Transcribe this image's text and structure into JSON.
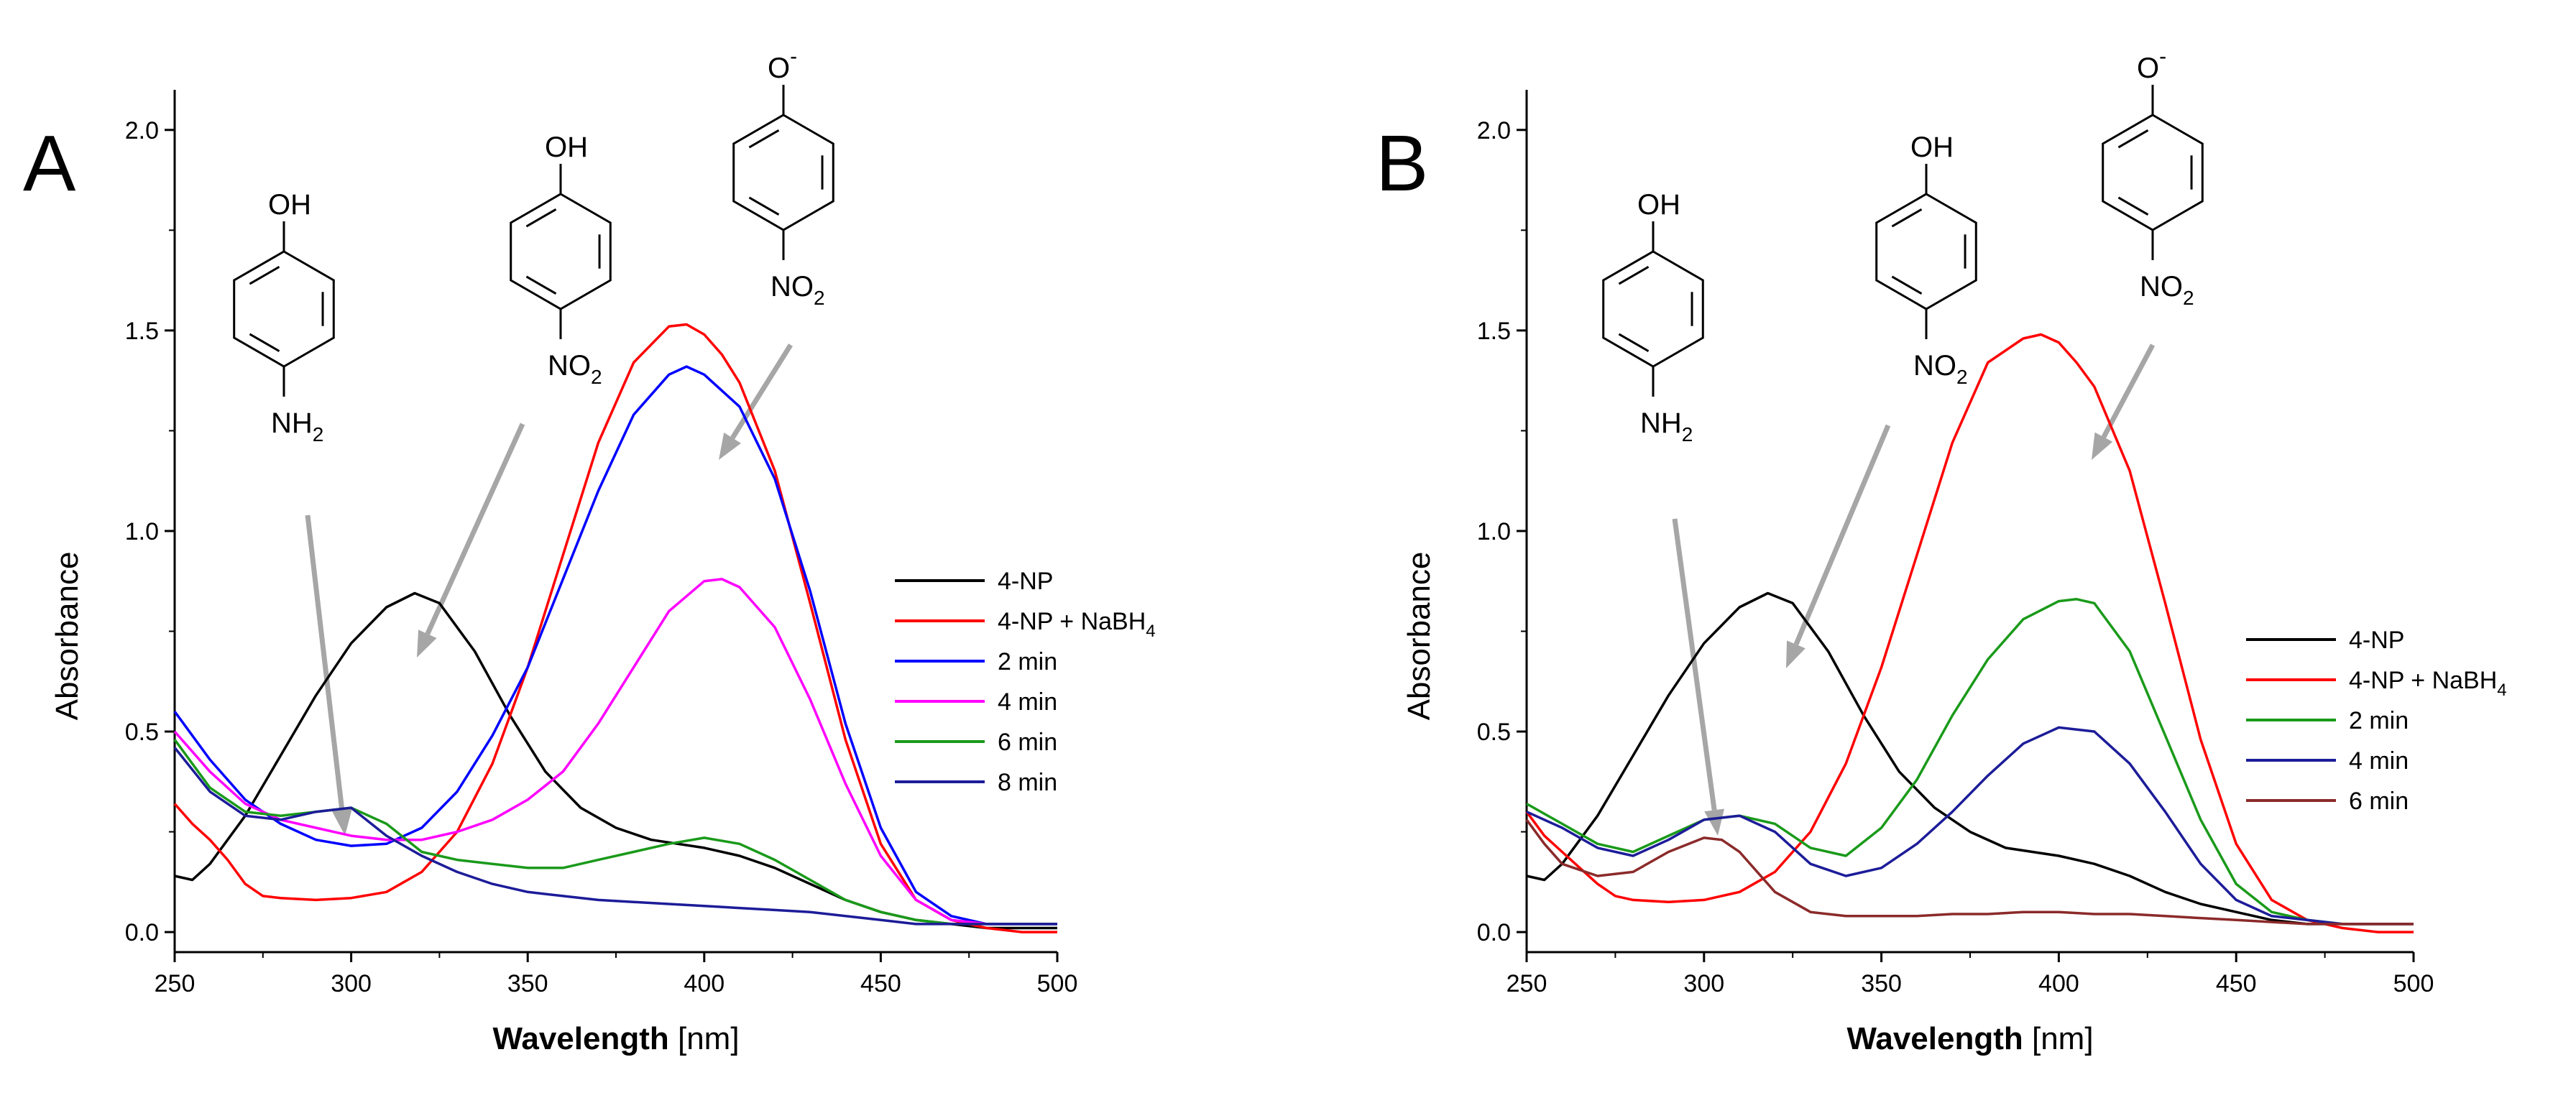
{
  "chart_data": [
    {
      "panel": "A",
      "type": "line",
      "xlabel_bold": "Wavelength",
      "xlabel_unit": "[nm]",
      "ylabel": "Absorbance",
      "xlim": [
        250,
        500
      ],
      "ylim": [
        -0.05,
        2.1
      ],
      "xticks": [
        250,
        300,
        350,
        400,
        450,
        500
      ],
      "yticks": [
        0.0,
        0.5,
        1.0,
        1.5,
        2.0
      ],
      "ytick_labels": [
        "0.0",
        "0.5",
        "1.0",
        "1.5",
        "2.0"
      ],
      "structures": [
        {
          "id": "aminophenol",
          "top": "OH",
          "bottom": "NH",
          "bottom_sub": "2"
        },
        {
          "id": "nitrophenol",
          "top": "OH",
          "bottom": "NO",
          "bottom_sub": "2"
        },
        {
          "id": "nitrophenolate",
          "top": "O",
          "top_sup": "-",
          "bottom": "NO",
          "bottom_sub": "2"
        }
      ],
      "series": [
        {
          "name": "4-NP",
          "color": "#000000",
          "x": [
            250,
            255,
            260,
            270,
            280,
            290,
            300,
            310,
            318,
            325,
            335,
            345,
            355,
            365,
            375,
            385,
            400,
            410,
            420,
            430,
            440,
            450,
            460,
            470,
            480,
            490,
            500
          ],
          "y": [
            0.14,
            0.13,
            0.17,
            0.29,
            0.44,
            0.59,
            0.72,
            0.81,
            0.845,
            0.82,
            0.7,
            0.54,
            0.4,
            0.31,
            0.26,
            0.23,
            0.21,
            0.19,
            0.16,
            0.12,
            0.08,
            0.05,
            0.03,
            0.02,
            0.01,
            0.01,
            0.01
          ]
        },
        {
          "name": "4-NP + NaBH₄",
          "label_main": "4-NP + NaBH",
          "label_sub": "4",
          "color": "#ff0000",
          "x": [
            250,
            255,
            260,
            265,
            270,
            275,
            280,
            290,
            300,
            310,
            320,
            330,
            340,
            350,
            360,
            370,
            380,
            390,
            395,
            400,
            405,
            410,
            420,
            430,
            440,
            450,
            460,
            470,
            480,
            490,
            500
          ],
          "y": [
            0.32,
            0.27,
            0.23,
            0.18,
            0.12,
            0.09,
            0.085,
            0.08,
            0.085,
            0.1,
            0.15,
            0.25,
            0.42,
            0.66,
            0.94,
            1.22,
            1.42,
            1.51,
            1.515,
            1.49,
            1.44,
            1.37,
            1.15,
            0.82,
            0.48,
            0.22,
            0.08,
            0.03,
            0.01,
            0.0,
            0.0
          ]
        },
        {
          "name": "2 min",
          "color": "#0000ff",
          "x": [
            250,
            260,
            270,
            280,
            290,
            300,
            310,
            320,
            330,
            340,
            350,
            360,
            370,
            380,
            390,
            395,
            400,
            410,
            420,
            430,
            440,
            450,
            460,
            470,
            480,
            490,
            500
          ],
          "y": [
            0.55,
            0.43,
            0.33,
            0.27,
            0.23,
            0.215,
            0.22,
            0.26,
            0.35,
            0.49,
            0.66,
            0.88,
            1.1,
            1.29,
            1.39,
            1.41,
            1.39,
            1.31,
            1.13,
            0.85,
            0.52,
            0.26,
            0.1,
            0.04,
            0.02,
            0.02,
            0.02
          ]
        },
        {
          "name": "4 min",
          "color": "#ff00ff",
          "x": [
            250,
            260,
            270,
            280,
            290,
            300,
            310,
            320,
            330,
            340,
            350,
            360,
            370,
            380,
            390,
            400,
            405,
            410,
            420,
            430,
            440,
            450,
            460,
            470,
            480,
            490,
            500
          ],
          "y": [
            0.5,
            0.4,
            0.32,
            0.28,
            0.26,
            0.24,
            0.23,
            0.23,
            0.25,
            0.28,
            0.33,
            0.4,
            0.52,
            0.66,
            0.8,
            0.875,
            0.88,
            0.86,
            0.76,
            0.58,
            0.37,
            0.19,
            0.08,
            0.03,
            0.02,
            0.02,
            0.02
          ]
        },
        {
          "name": "6 min",
          "color": "#1a9a1a",
          "x": [
            250,
            260,
            270,
            280,
            290,
            300,
            310,
            320,
            330,
            340,
            350,
            360,
            370,
            380,
            390,
            400,
            410,
            420,
            430,
            440,
            450,
            460,
            470,
            480,
            490,
            500
          ],
          "y": [
            0.48,
            0.36,
            0.3,
            0.29,
            0.3,
            0.31,
            0.27,
            0.2,
            0.18,
            0.17,
            0.16,
            0.16,
            0.18,
            0.2,
            0.22,
            0.235,
            0.22,
            0.18,
            0.13,
            0.08,
            0.05,
            0.03,
            0.02,
            0.02,
            0.02,
            0.02
          ]
        },
        {
          "name": "8 min",
          "color": "#1c1c99",
          "x": [
            250,
            260,
            270,
            280,
            290,
            300,
            310,
            320,
            330,
            340,
            350,
            360,
            370,
            380,
            390,
            400,
            410,
            420,
            430,
            440,
            450,
            460,
            470,
            480,
            490,
            500
          ],
          "y": [
            0.46,
            0.35,
            0.29,
            0.28,
            0.3,
            0.31,
            0.24,
            0.19,
            0.15,
            0.12,
            0.1,
            0.09,
            0.08,
            0.075,
            0.07,
            0.065,
            0.06,
            0.055,
            0.05,
            0.04,
            0.03,
            0.02,
            0.02,
            0.02,
            0.02,
            0.02
          ]
        }
      ]
    },
    {
      "panel": "B",
      "type": "line",
      "xlabel_bold": "Wavelength",
      "xlabel_unit": "[nm]",
      "ylabel": "Absorbance",
      "xlim": [
        250,
        500
      ],
      "ylim": [
        -0.05,
        2.1
      ],
      "xticks": [
        250,
        300,
        350,
        400,
        450,
        500
      ],
      "yticks": [
        0.0,
        0.5,
        1.0,
        1.5,
        2.0
      ],
      "ytick_labels": [
        "0.0",
        "0.5",
        "1.0",
        "1.5",
        "2.0"
      ],
      "structures": [
        {
          "id": "aminophenol",
          "top": "OH",
          "bottom": "NH",
          "bottom_sub": "2"
        },
        {
          "id": "nitrophenol",
          "top": "OH",
          "bottom": "NO",
          "bottom_sub": "2"
        },
        {
          "id": "nitrophenolate",
          "top": "O",
          "top_sup": "-",
          "bottom": "NO",
          "bottom_sub": "2"
        }
      ],
      "series": [
        {
          "name": "4-NP",
          "color": "#000000",
          "x": [
            250,
            255,
            260,
            270,
            280,
            290,
            300,
            310,
            318,
            325,
            335,
            345,
            355,
            365,
            375,
            385,
            400,
            410,
            420,
            430,
            440,
            450,
            460,
            470,
            480,
            490,
            500
          ],
          "y": [
            0.14,
            0.13,
            0.17,
            0.29,
            0.44,
            0.59,
            0.72,
            0.81,
            0.845,
            0.82,
            0.7,
            0.54,
            0.4,
            0.31,
            0.25,
            0.21,
            0.19,
            0.17,
            0.14,
            0.1,
            0.07,
            0.05,
            0.03,
            0.02,
            0.02,
            0.02,
            0.02
          ]
        },
        {
          "name": "4-NP + NaBH₄",
          "label_main": "4-NP + NaBH",
          "label_sub": "4",
          "color": "#ff0000",
          "x": [
            250,
            255,
            260,
            265,
            270,
            275,
            280,
            290,
            300,
            310,
            320,
            330,
            340,
            350,
            360,
            370,
            380,
            390,
            395,
            400,
            405,
            410,
            420,
            430,
            440,
            450,
            460,
            470,
            480,
            490,
            500
          ],
          "y": [
            0.3,
            0.24,
            0.2,
            0.16,
            0.12,
            0.09,
            0.08,
            0.075,
            0.08,
            0.1,
            0.15,
            0.25,
            0.42,
            0.66,
            0.94,
            1.22,
            1.42,
            1.48,
            1.49,
            1.47,
            1.42,
            1.36,
            1.15,
            0.82,
            0.48,
            0.22,
            0.08,
            0.03,
            0.01,
            0.0,
            0.0
          ]
        },
        {
          "name": "2 min",
          "color": "#1a9a1a",
          "x": [
            250,
            260,
            270,
            280,
            290,
            300,
            310,
            320,
            330,
            340,
            350,
            360,
            370,
            380,
            390,
            400,
            405,
            410,
            420,
            430,
            440,
            450,
            460,
            470,
            480,
            490,
            500
          ],
          "y": [
            0.32,
            0.27,
            0.22,
            0.2,
            0.24,
            0.28,
            0.29,
            0.27,
            0.21,
            0.19,
            0.26,
            0.38,
            0.54,
            0.68,
            0.78,
            0.825,
            0.83,
            0.82,
            0.7,
            0.49,
            0.28,
            0.12,
            0.05,
            0.03,
            0.02,
            0.02,
            0.02
          ]
        },
        {
          "name": "4 min",
          "color": "#1c1c99",
          "x": [
            250,
            260,
            270,
            280,
            290,
            300,
            310,
            320,
            330,
            340,
            350,
            360,
            370,
            380,
            390,
            400,
            410,
            420,
            430,
            440,
            450,
            460,
            470,
            480,
            490,
            500
          ],
          "y": [
            0.3,
            0.26,
            0.21,
            0.19,
            0.23,
            0.28,
            0.29,
            0.25,
            0.17,
            0.14,
            0.16,
            0.22,
            0.3,
            0.39,
            0.47,
            0.51,
            0.5,
            0.42,
            0.3,
            0.17,
            0.08,
            0.04,
            0.03,
            0.02,
            0.02,
            0.02
          ]
        },
        {
          "name": "6 min",
          "color": "#8b2a2a",
          "x": [
            250,
            255,
            260,
            270,
            280,
            290,
            300,
            305,
            310,
            320,
            330,
            340,
            350,
            360,
            370,
            380,
            390,
            400,
            410,
            420,
            430,
            440,
            450,
            460,
            470,
            480,
            490,
            500
          ],
          "y": [
            0.28,
            0.22,
            0.17,
            0.14,
            0.15,
            0.2,
            0.235,
            0.23,
            0.2,
            0.1,
            0.05,
            0.04,
            0.04,
            0.04,
            0.045,
            0.045,
            0.05,
            0.05,
            0.045,
            0.045,
            0.04,
            0.035,
            0.03,
            0.025,
            0.02,
            0.02,
            0.02,
            0.02
          ]
        }
      ]
    }
  ]
}
